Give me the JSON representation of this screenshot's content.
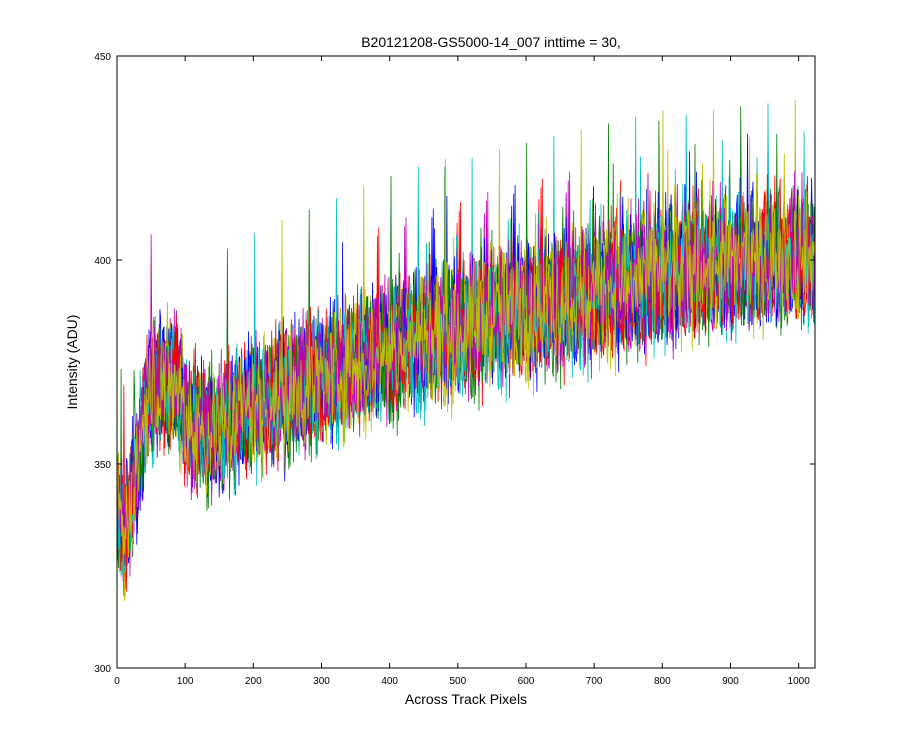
{
  "chart_data": {
    "type": "line",
    "title": "B20121208-GS5000-14_007 inttime = 30,",
    "xlabel": "Across Track Pixels",
    "ylabel": "Intensity (ADU)",
    "xlim": [
      0,
      1024
    ],
    "ylim": [
      300,
      450
    ],
    "xticks": [
      0,
      100,
      200,
      300,
      400,
      500,
      600,
      700,
      800,
      900,
      1000
    ],
    "yticks": [
      300,
      350,
      400,
      450
    ],
    "grid": false,
    "legend": "none",
    "series_colors": [
      "#0000ff",
      "#008000",
      "#ff0000",
      "#00bfbf",
      "#bf00bf",
      "#bfbf00"
    ],
    "x_points": [
      0,
      5,
      10,
      15,
      20,
      30,
      40,
      50,
      60,
      70,
      80,
      90,
      100,
      120,
      140,
      160,
      180,
      200,
      250,
      300,
      350,
      400,
      450,
      500,
      550,
      600,
      650,
      700,
      750,
      800,
      850,
      900,
      950,
      1000,
      1024
    ],
    "trend_values": [
      340,
      336,
      331,
      335,
      342,
      350,
      360,
      368,
      370,
      371,
      370,
      369,
      362,
      358,
      358,
      360,
      363,
      364,
      368,
      371,
      375,
      378,
      381,
      383,
      386,
      388,
      390,
      392,
      394,
      396,
      398,
      399,
      400,
      401,
      401
    ],
    "noise_amplitude": 14
  }
}
